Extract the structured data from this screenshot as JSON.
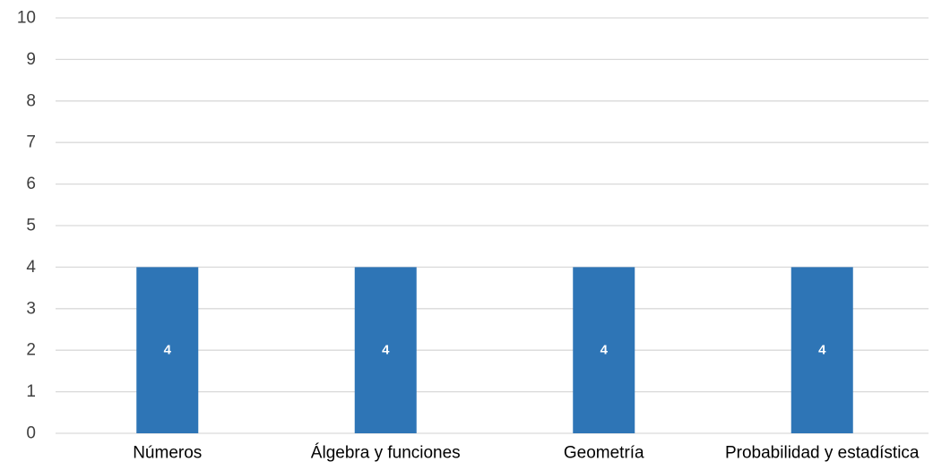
{
  "chart_data": {
    "type": "bar",
    "categories": [
      "Números",
      "Álgebra y funciones",
      "Geometría",
      "Probabilidad y estadística"
    ],
    "values": [
      4,
      4,
      4,
      4
    ],
    "data_labels": [
      "4",
      "4",
      "4",
      "4"
    ],
    "title": "",
    "xlabel": "",
    "ylabel": "",
    "ylim": [
      0,
      10
    ],
    "yticks": [
      0,
      1,
      2,
      3,
      4,
      5,
      6,
      7,
      8,
      9,
      10
    ],
    "grid": true,
    "legend": "none",
    "colors": {
      "bar": "#2E75B6",
      "grid": "#D9D9D9",
      "tick_text": "#404040",
      "category_text": "#000000",
      "data_label_text": "#FFFFFF"
    }
  }
}
